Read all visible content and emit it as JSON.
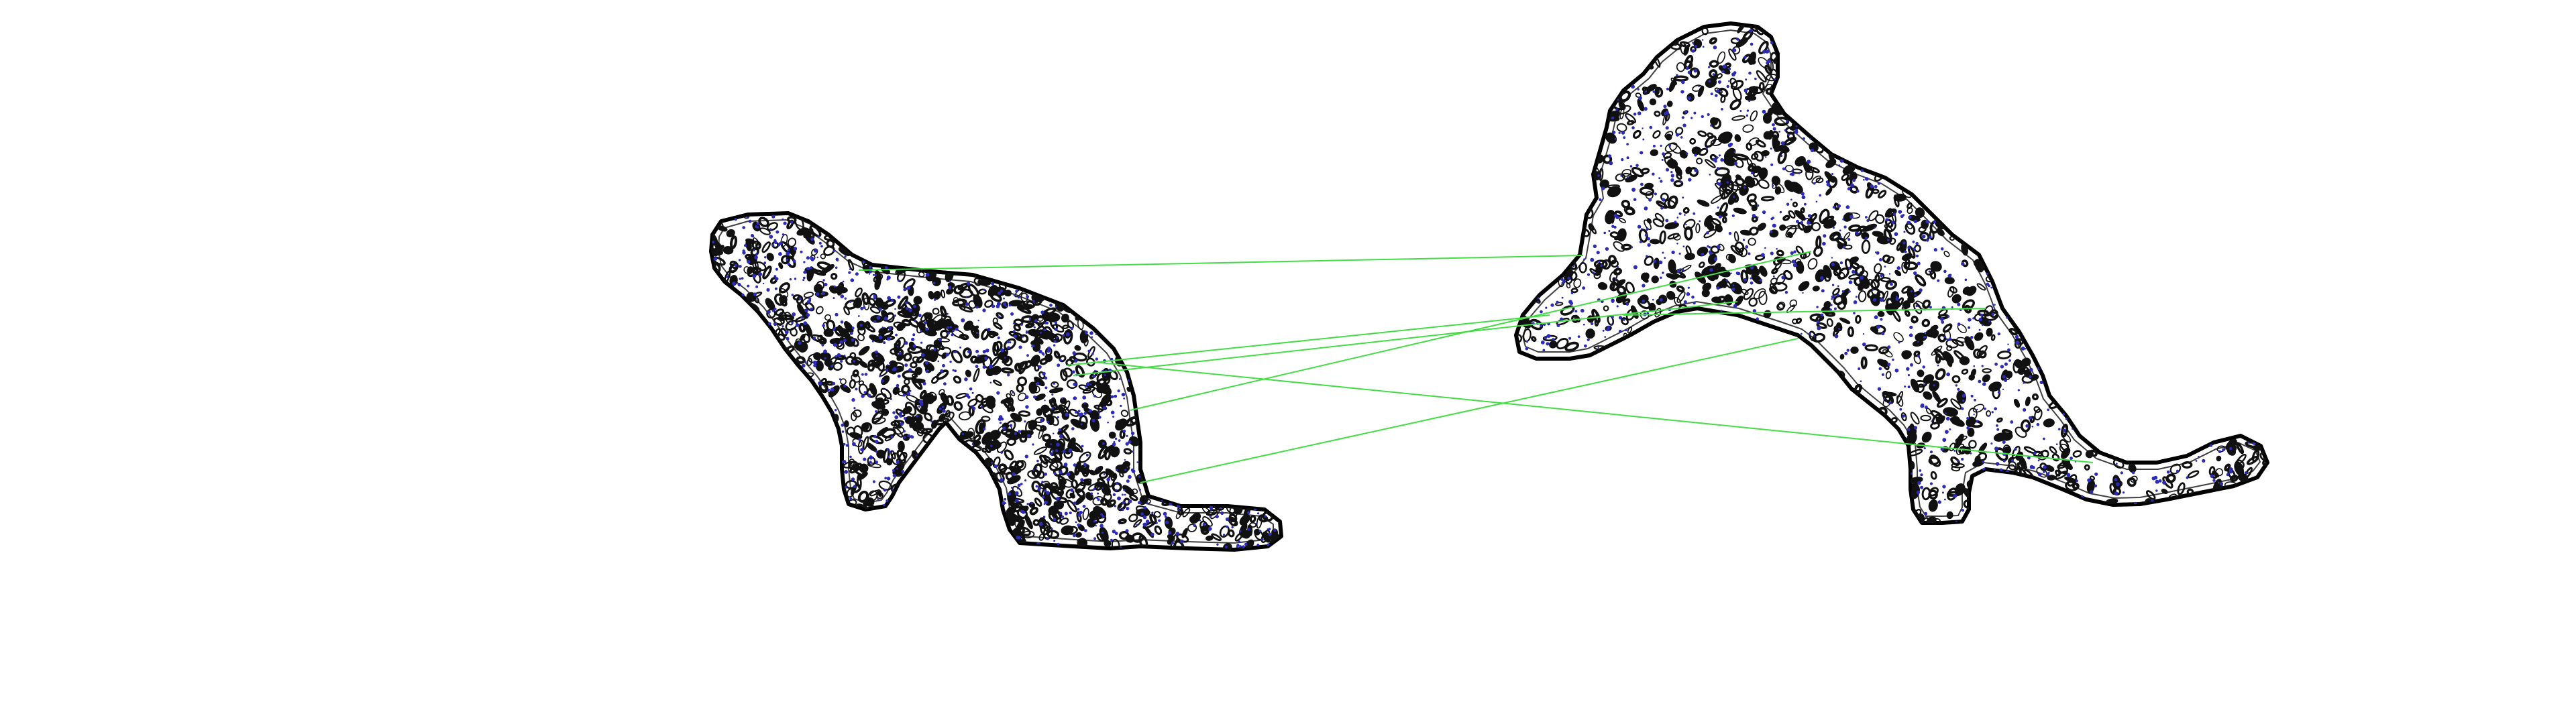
{
  "figure": {
    "background": "#ffffff",
    "colors": {
      "outline": "#000000",
      "texture": "#111111",
      "keypoints": "#2b2bb8",
      "matches": "#44dd44"
    },
    "shapes": [
      {
        "name": "left-silhouette",
        "description_icon": "leopard-silhouette"
      },
      {
        "name": "right-silhouette",
        "description_icon": "leopard-silhouette"
      }
    ],
    "match_count": 7
  }
}
